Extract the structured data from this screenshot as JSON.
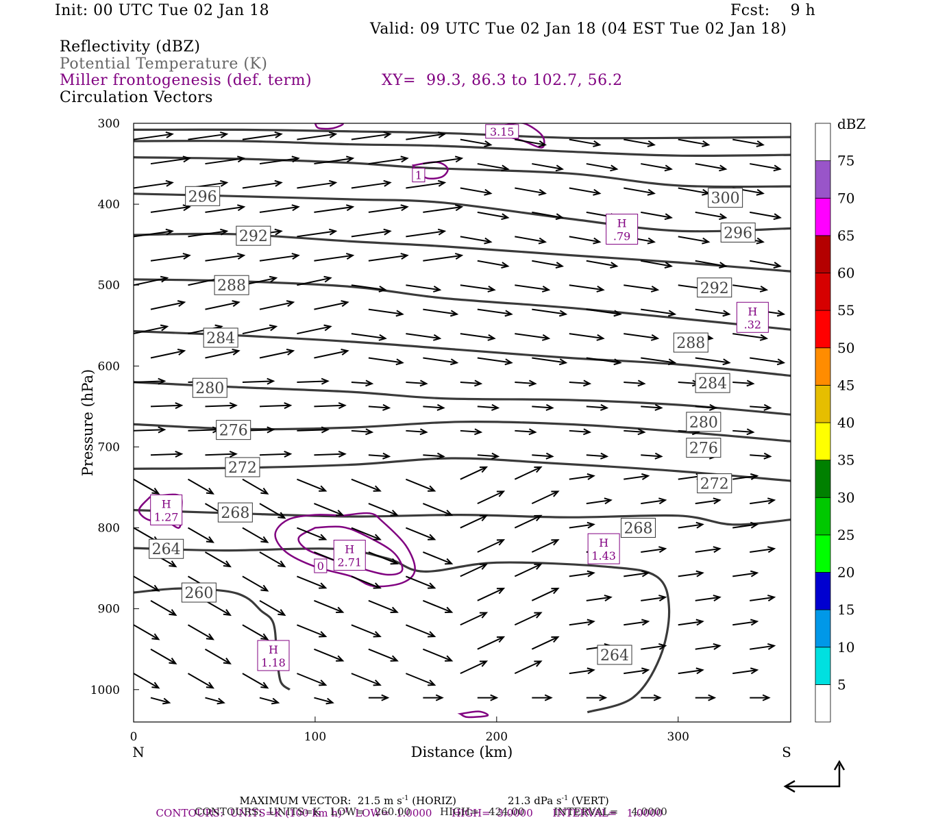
{
  "header": {
    "init": "Init: 00 UTC Tue 02 Jan 18",
    "fcst": "Fcst:    9 h",
    "valid": "Valid: 09 UTC Tue 02 Jan 18 (04 EST Tue 02 Jan 18)",
    "line1": "Reflectivity (dBZ)",
    "line2": "Potential Temperature (K)",
    "line3": "Miller frontogenesis (def. term)",
    "xy": "XY=  99.3, 86.3 to 102.7, 56.2",
    "line4": "Circulation Vectors"
  },
  "footer": {
    "line1a": "MAXIMUM VECTOR:  21.5 m s",
    "line1b": "-1",
    "line1c": " (HORIZ)",
    "line1d": "21.3 dPa s",
    "line1e": "-1",
    "line1f": " (VERT)",
    "line2a": "CONTOURS:  UNITS=K (100 km h)",
    "line2b": "-1",
    "line2c": "  LOW=  1.0000      HIGH=  3.0000      INTERVAL=   1.0000",
    "line3": "CONTOURS:  UNITS=K   LOW=   260.00         HIGH=   424.00         INTERVAL=    4.0000"
  },
  "colorbar": {
    "title": "dBZ",
    "labels": [
      "5",
      "10",
      "15",
      "20",
      "25",
      "30",
      "35",
      "40",
      "45",
      "50",
      "55",
      "60",
      "65",
      "70",
      "75"
    ],
    "colors": [
      "#ffffff",
      "#00e0e0",
      "#0098e8",
      "#0000d0",
      "#00ff00",
      "#00c800",
      "#008000",
      "#ffff00",
      "#e6be00",
      "#ff8c00",
      "#ff0000",
      "#d60000",
      "#b40000",
      "#ff00ff",
      "#9955c9",
      "#ffffff"
    ]
  },
  "colors": {
    "theta": "#3a3a3a",
    "fronto": "#800080",
    "vector": "#000000"
  },
  "chart_data": {
    "type": "cross-section",
    "xlabel": "Distance (km)",
    "ylabel": "Pressure (hPa)",
    "xlim": [
      0,
      362
    ],
    "ylim": [
      300,
      1040
    ],
    "y_scale": "linear, inverted",
    "x_ticks": [
      0,
      100,
      200,
      300
    ],
    "y_ticks": [
      300,
      400,
      500,
      600,
      700,
      800,
      900,
      1000
    ],
    "endpoints": {
      "left": "N",
      "right": "S"
    },
    "theta_contours": [
      {
        "value": 260,
        "points": [
          [
            0,
            880
          ],
          [
            25,
            875
          ],
          [
            50,
            878
          ],
          [
            62,
            886
          ],
          [
            70,
            902
          ],
          [
            77,
            918
          ],
          [
            79,
            960
          ],
          [
            81,
            990
          ],
          [
            86,
            1000
          ]
        ]
      },
      {
        "value": 264,
        "points": [
          [
            0,
            825
          ],
          [
            50,
            828
          ],
          [
            110,
            826
          ],
          [
            140,
            838
          ],
          [
            160,
            854
          ],
          [
            200,
            843
          ],
          [
            260,
            848
          ],
          [
            288,
            860
          ],
          [
            295,
            900
          ],
          [
            290,
            960
          ],
          [
            275,
            1010
          ],
          [
            250,
            1028
          ]
        ]
      },
      {
        "value": 268,
        "points": [
          [
            0,
            778
          ],
          [
            55,
            782
          ],
          [
            120,
            786
          ],
          [
            180,
            784
          ],
          [
            240,
            787
          ],
          [
            300,
            785
          ],
          [
            330,
            796
          ],
          [
            362,
            790
          ]
        ]
      },
      {
        "value": 272,
        "points": [
          [
            0,
            727
          ],
          [
            55,
            726
          ],
          [
            120,
            722
          ],
          [
            175,
            714
          ],
          [
            230,
            720
          ],
          [
            300,
            730
          ],
          [
            362,
            742
          ]
        ]
      },
      {
        "value": 276,
        "points": [
          [
            0,
            672
          ],
          [
            60,
            678
          ],
          [
            120,
            676
          ],
          [
            180,
            669
          ],
          [
            240,
            672
          ],
          [
            300,
            681
          ],
          [
            362,
            693
          ]
        ]
      },
      {
        "value": 280,
        "points": [
          [
            0,
            620
          ],
          [
            55,
            626
          ],
          [
            120,
            632
          ],
          [
            170,
            640
          ],
          [
            240,
            642
          ],
          [
            300,
            648
          ],
          [
            362,
            660
          ]
        ]
      },
      {
        "value": 284,
        "points": [
          [
            0,
            557
          ],
          [
            55,
            562
          ],
          [
            120,
            570
          ],
          [
            180,
            580
          ],
          [
            240,
            590
          ],
          [
            300,
            598
          ],
          [
            362,
            612
          ]
        ]
      },
      {
        "value": 288,
        "points": [
          [
            0,
            493
          ],
          [
            55,
            495
          ],
          [
            120,
            502
          ],
          [
            170,
            516
          ],
          [
            240,
            528
          ],
          [
            300,
            541
          ],
          [
            362,
            555
          ]
        ]
      },
      {
        "value": 292,
        "points": [
          [
            0,
            438
          ],
          [
            55,
            437
          ],
          [
            120,
            446
          ],
          [
            170,
            452
          ],
          [
            240,
            463
          ],
          [
            300,
            472
          ],
          [
            362,
            483
          ]
        ]
      },
      {
        "value": 296,
        "points": [
          [
            0,
            387
          ],
          [
            55,
            390
          ],
          [
            120,
            394
          ],
          [
            170,
            398
          ],
          [
            240,
            418
          ],
          [
            300,
            433
          ],
          [
            362,
            430
          ]
        ]
      },
      {
        "value": 300,
        "points": [
          [
            0,
            342
          ],
          [
            60,
            344
          ],
          [
            120,
            349
          ],
          [
            160,
            355
          ],
          [
            240,
            362
          ],
          [
            300,
            377
          ],
          [
            362,
            378
          ]
        ]
      },
      {
        "value": null,
        "points": [
          [
            0,
            322
          ],
          [
            60,
            322
          ],
          [
            120,
            326
          ],
          [
            170,
            328
          ],
          [
            240,
            335
          ],
          [
            300,
            340
          ],
          [
            362,
            339
          ]
        ]
      },
      {
        "value": null,
        "points": [
          [
            0,
            308
          ],
          [
            60,
            308
          ],
          [
            120,
            310
          ],
          [
            170,
            312
          ],
          [
            240,
            318
          ],
          [
            300,
            318
          ],
          [
            362,
            317
          ]
        ]
      }
    ],
    "frontogenesis_maxima": [
      {
        "label": "H",
        "value": "1.27",
        "x": 18,
        "p": 777
      },
      {
        "label": "H",
        "value": "2.71",
        "x": 119,
        "p": 833
      },
      {
        "label": "H",
        "value": "1.43",
        "x": 259,
        "p": 825
      },
      {
        "label": "H",
        "value": "1.18",
        "x": 77,
        "p": 957
      },
      {
        "label": "H",
        "value": ".79",
        "x": 269,
        "p": 430
      },
      {
        "label": "H",
        "value": ".32",
        "x": 341,
        "p": 539
      }
    ],
    "frontogenesis_labels": [
      "3.15",
      "1",
      "0"
    ],
    "vectors": {
      "max_horizontal": "21.5 m s-1",
      "max_vertical": "21.3 dPa s-1"
    }
  }
}
